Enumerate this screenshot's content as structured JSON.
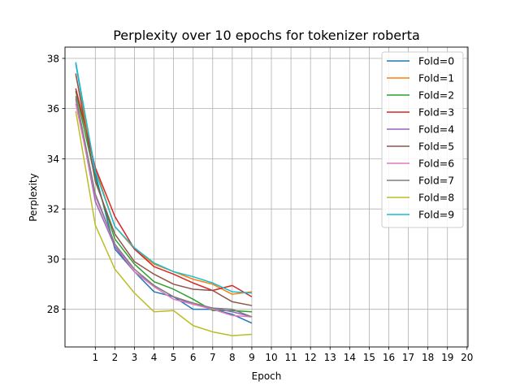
{
  "chart_data": {
    "type": "line",
    "title": "Perplexity over 10 epochs for tokenizer roberta",
    "xlabel": "Epoch",
    "ylabel": "Perplexity",
    "x": [
      0,
      1,
      2,
      3,
      4,
      5,
      6,
      7,
      8,
      9
    ],
    "xlim": [
      -0.55,
      20.05
    ],
    "ylim": [
      26.5,
      38.45
    ],
    "xticks": [
      1,
      2,
      3,
      4,
      5,
      6,
      7,
      8,
      9,
      10,
      11,
      12,
      13,
      14,
      15,
      16,
      17,
      18,
      19,
      20
    ],
    "yticks": [
      28,
      30,
      32,
      34,
      36,
      38
    ],
    "grid": true,
    "legend_position": "top-right",
    "series": [
      {
        "name": "Fold=0",
        "color": "#1f77b4",
        "values": [
          37.8,
          33.4,
          30.4,
          29.5,
          28.7,
          28.5,
          28.0,
          28.0,
          27.8,
          27.45
        ]
      },
      {
        "name": "Fold=1",
        "color": "#ff7f0e",
        "values": [
          37.35,
          33.6,
          31.3,
          30.4,
          29.8,
          29.5,
          29.2,
          29.0,
          28.6,
          28.7
        ]
      },
      {
        "name": "Fold=2",
        "color": "#2ca02c",
        "values": [
          36.7,
          33.2,
          30.8,
          29.8,
          29.1,
          28.8,
          28.4,
          27.95,
          27.95,
          27.9
        ]
      },
      {
        "name": "Fold=3",
        "color": "#d62728",
        "values": [
          36.8,
          33.65,
          31.7,
          30.4,
          29.7,
          29.4,
          29.05,
          28.75,
          28.95,
          28.5
        ]
      },
      {
        "name": "Fold=4",
        "color": "#9467bd",
        "values": [
          36.4,
          32.3,
          30.5,
          29.5,
          28.95,
          28.5,
          28.2,
          28.05,
          27.9,
          27.7
        ]
      },
      {
        "name": "Fold=5",
        "color": "#8c564b",
        "values": [
          37.4,
          33.1,
          31.0,
          29.9,
          29.4,
          29.0,
          28.8,
          28.75,
          28.3,
          28.15
        ]
      },
      {
        "name": "Fold=6",
        "color": "#e377c2",
        "values": [
          36.2,
          32.5,
          30.6,
          29.5,
          28.9,
          28.4,
          28.2,
          28.0,
          27.75,
          27.7
        ]
      },
      {
        "name": "Fold=7",
        "color": "#7f7f7f",
        "values": [
          36.5,
          32.6,
          30.6,
          29.6,
          28.95,
          28.5,
          28.25,
          28.05,
          28.0,
          27.7
        ]
      },
      {
        "name": "Fold=8",
        "color": "#bcbd22",
        "values": [
          35.9,
          31.35,
          29.6,
          28.65,
          27.9,
          27.95,
          27.35,
          27.1,
          26.95,
          27.0
        ]
      },
      {
        "name": "Fold=9",
        "color": "#17becf",
        "values": [
          37.85,
          33.5,
          31.3,
          30.45,
          29.85,
          29.5,
          29.3,
          29.05,
          28.7,
          28.65
        ]
      }
    ]
  }
}
